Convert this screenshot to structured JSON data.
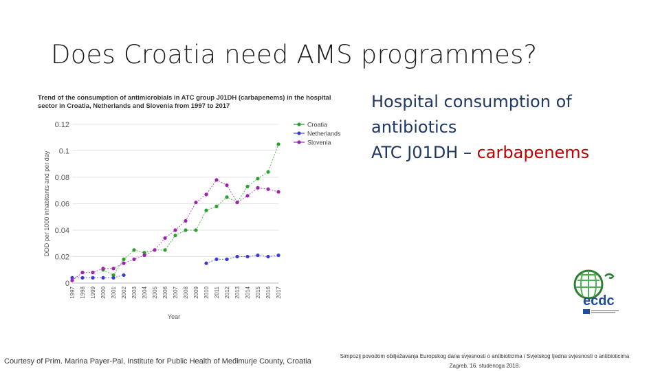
{
  "slide": {
    "title": "Does Croatia need AMS programmes?",
    "info_line1": "Hospital consumption of",
    "info_line2": "antibiotics",
    "info_line3_prefix": "ATC J01DH – ",
    "info_line3_highlight": "carbapenems",
    "courtesy": "Courtesy of Prim. Marina Payer-Pal, Institute for Public Health of Međimurje County, Croatia",
    "footer_line1": "Simpozij povodom obilježavanja Europskog dana svjesnosti o antibioticima i Svjetskog tjedna svjesnosti o antibioticima",
    "footer_line2": "Zagreb, 16. studenoga 2018.",
    "logo_text": "ecdc",
    "colors": {
      "info": "#1f3864",
      "highlight": "#c00000"
    }
  },
  "chart_data": {
    "type": "line",
    "title": "Trend of the consumption of antimicrobials in ATC group J01DH (carbapenems) in the hospital sector in Croatia, Netherlands and Slovenia from 1997 to 2017",
    "xlabel": "Year",
    "ylabel": "DDD per 1000 inhabitants and per day",
    "ylim": [
      0,
      0.12
    ],
    "yticks": [
      "0",
      "0.02",
      "0.04",
      "0.06",
      "0.08",
      "0.1",
      "0.12"
    ],
    "x": [
      "1997",
      "1998",
      "1999",
      "2000",
      "2001",
      "2002",
      "2003",
      "2004",
      "2005",
      "2006",
      "2007",
      "2008",
      "2009",
      "2010",
      "2011",
      "2012",
      "2013",
      "2014",
      "2015",
      "2016",
      "2017"
    ],
    "legend_position": "top-right",
    "series": [
      {
        "name": "Croatia",
        "color": "#2ca02c",
        "values": [
          null,
          null,
          null,
          0.01,
          0.006,
          0.018,
          0.025,
          0.023,
          0.025,
          0.025,
          0.036,
          0.04,
          0.04,
          0.055,
          0.058,
          0.065,
          0.061,
          0.073,
          0.079,
          0.084,
          0.105
        ]
      },
      {
        "name": "Netherlands",
        "color": "#3a3ad6",
        "values": [
          0.004,
          0.004,
          0.004,
          0.004,
          0.004,
          0.006,
          null,
          null,
          null,
          null,
          null,
          null,
          null,
          0.015,
          0.018,
          0.018,
          0.02,
          0.02,
          0.021,
          0.02,
          0.021
        ]
      },
      {
        "name": "Slovenia",
        "color": "#a020b0",
        "values": [
          0.002,
          0.008,
          0.008,
          0.011,
          0.011,
          0.015,
          0.018,
          0.021,
          0.025,
          0.034,
          0.04,
          0.047,
          0.061,
          0.067,
          0.078,
          0.074,
          0.061,
          0.066,
          0.072,
          0.071,
          0.069
        ]
      }
    ]
  }
}
